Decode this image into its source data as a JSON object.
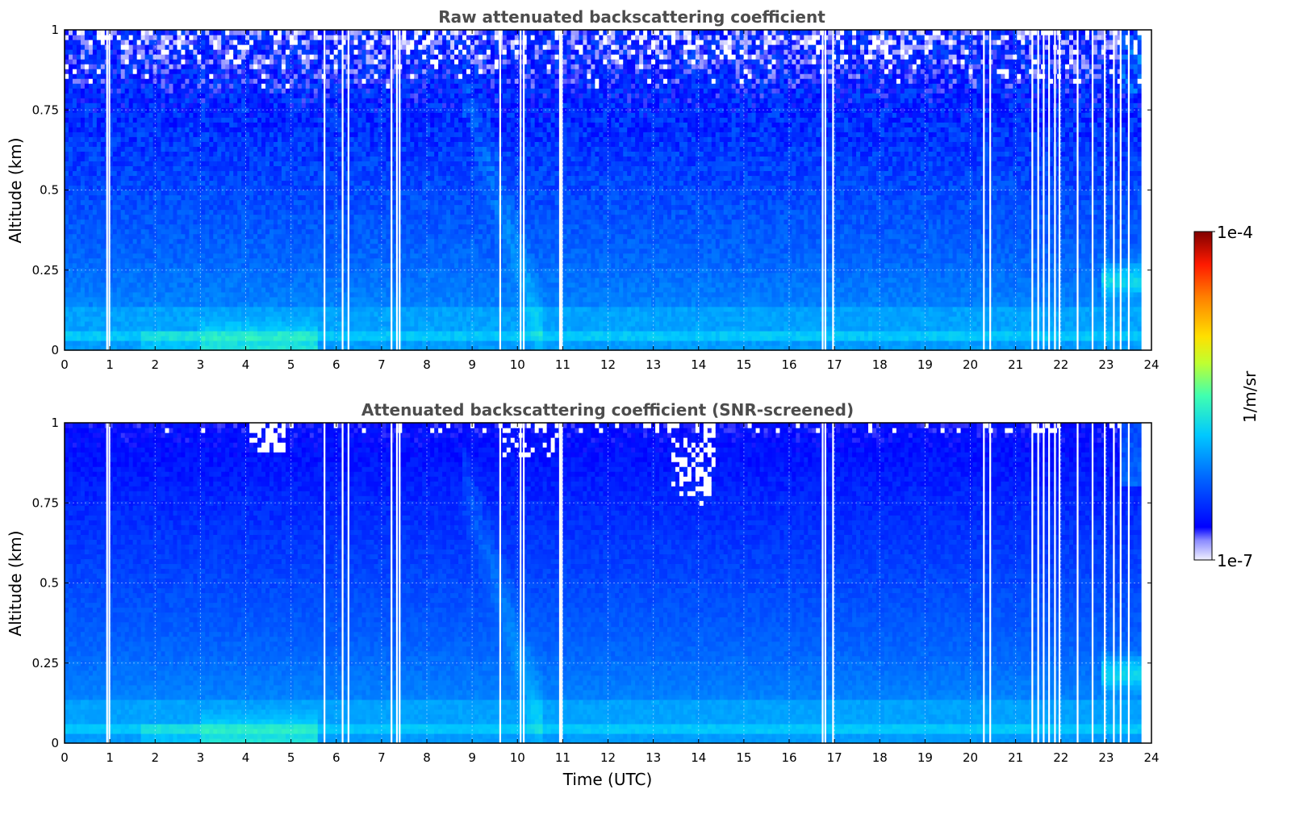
{
  "chart_data": [
    {
      "type": "heatmap",
      "title": "Raw attenuated backscattering coefficient",
      "xlabel": "",
      "ylabel": "Altitude (km)",
      "xlim": [
        0,
        24
      ],
      "ylim": [
        0,
        1
      ],
      "xticks": [
        "0",
        "1",
        "2",
        "3",
        "4",
        "5",
        "6",
        "7",
        "8",
        "9",
        "10",
        "11",
        "12",
        "13",
        "14",
        "15",
        "16",
        "17",
        "18",
        "19",
        "20",
        "21",
        "22",
        "23",
        "24"
      ],
      "yticks": [
        "0",
        "0.25",
        "0.5",
        "0.75",
        "1"
      ],
      "grid": true,
      "gaps_utc": [
        0.92,
        0.97,
        5.72,
        6.12,
        6.25,
        7.2,
        7.32,
        7.38,
        9.6,
        10.05,
        10.12,
        10.92,
        10.96,
        16.72,
        16.78,
        16.95,
        20.28,
        20.42,
        21.35,
        21.48,
        21.6,
        21.72,
        21.85,
        21.95,
        22.35,
        22.68,
        22.95,
        23.15,
        23.3,
        23.48
      ],
      "screened": false
    },
    {
      "type": "heatmap",
      "title": "Attenuated backscattering coefficient (SNR-screened)",
      "xlabel": "Time (UTC)",
      "ylabel": "Altitude (km)",
      "xlim": [
        0,
        24
      ],
      "ylim": [
        0,
        1
      ],
      "xticks": [
        "0",
        "1",
        "2",
        "3",
        "4",
        "5",
        "6",
        "7",
        "8",
        "9",
        "10",
        "11",
        "12",
        "13",
        "14",
        "15",
        "16",
        "17",
        "18",
        "19",
        "20",
        "21",
        "22",
        "23",
        "24"
      ],
      "yticks": [
        "0",
        "0.25",
        "0.5",
        "0.75",
        "1"
      ],
      "grid": true,
      "gaps_utc": [
        0.92,
        0.97,
        5.72,
        6.12,
        6.25,
        7.2,
        7.32,
        7.38,
        9.6,
        10.05,
        10.12,
        10.92,
        10.96,
        16.72,
        16.78,
        16.95,
        20.28,
        20.42,
        21.35,
        21.48,
        21.6,
        21.72,
        21.85,
        21.95,
        22.35,
        22.68,
        22.95,
        23.15,
        23.3,
        23.48
      ],
      "screened": true
    }
  ],
  "colorbar": {
    "label": "1/m/sr",
    "min_label": "1e-7",
    "max_label": "1e-4",
    "scale": "log",
    "colormap": [
      "#f0f0ff",
      "#0000ff",
      "#0066ff",
      "#00c8ff",
      "#40ffb0",
      "#c0ff30",
      "#ffe000",
      "#ff8000",
      "#ff1a00",
      "#800000"
    ]
  },
  "colors": {
    "background": "#ffffff",
    "axis": "#000000",
    "title": "#4d4d4d",
    "gap": "#ffffff"
  }
}
